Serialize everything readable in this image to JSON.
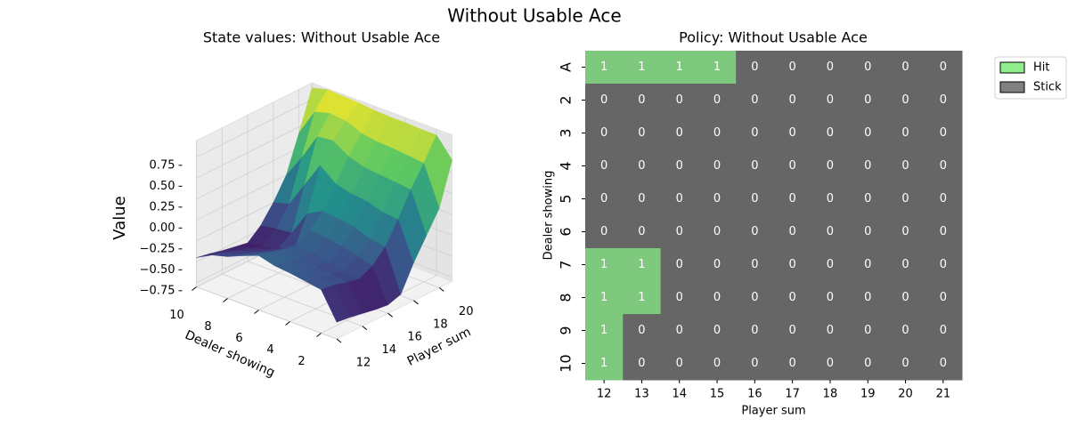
{
  "title": "Without Usable Ace",
  "chart_data": [
    {
      "type": "surface",
      "title": "State values: Without Usable Ace",
      "xlabel": "Player sum",
      "ylabel": "Dealer showing",
      "zlabel": "Value",
      "x": [
        12,
        13,
        14,
        15,
        16,
        17,
        18,
        19,
        20,
        21
      ],
      "y": [
        1,
        2,
        3,
        4,
        5,
        6,
        7,
        8,
        9,
        10
      ],
      "z": [
        [
          -0.6,
          -0.62,
          -0.65,
          -0.68,
          -0.7,
          -0.65,
          -0.35,
          -0.1,
          0.15,
          0.65
        ],
        [
          -0.28,
          -0.3,
          -0.35,
          -0.38,
          -0.3,
          -0.15,
          0.1,
          0.38,
          0.62,
          0.88
        ],
        [
          -0.25,
          -0.28,
          -0.32,
          -0.35,
          -0.25,
          -0.12,
          0.12,
          0.4,
          0.64,
          0.88
        ],
        [
          -0.22,
          -0.25,
          -0.3,
          -0.32,
          -0.2,
          -0.05,
          0.18,
          0.42,
          0.66,
          0.89
        ],
        [
          -0.2,
          -0.22,
          -0.26,
          -0.28,
          -0.17,
          -0.02,
          0.2,
          0.44,
          0.67,
          0.89
        ],
        [
          -0.15,
          -0.18,
          -0.22,
          -0.25,
          -0.15,
          0.0,
          0.25,
          0.5,
          0.7,
          0.9
        ],
        [
          -0.22,
          -0.28,
          -0.33,
          -0.38,
          -0.45,
          -0.1,
          0.4,
          0.62,
          0.78,
          0.92
        ],
        [
          -0.3,
          -0.35,
          -0.4,
          -0.45,
          -0.5,
          -0.4,
          0.1,
          0.6,
          0.8,
          0.93
        ],
        [
          -0.35,
          -0.4,
          -0.45,
          -0.5,
          -0.55,
          -0.42,
          -0.2,
          0.28,
          0.75,
          0.94
        ],
        [
          -0.45,
          -0.48,
          -0.52,
          -0.55,
          -0.58,
          -0.45,
          -0.25,
          0.0,
          0.43,
          0.89
        ]
      ],
      "xlim": [
        12,
        21
      ],
      "ylim": [
        1,
        10
      ],
      "zlim": [
        -0.8,
        0.95
      ],
      "xticks": [
        12,
        14,
        16,
        18,
        20
      ],
      "yticks": [
        2,
        4,
        6,
        8,
        10
      ],
      "zticks": [
        {
          "value": -0.75,
          "label": "−0.75"
        },
        {
          "value": -0.5,
          "label": "−0.50"
        },
        {
          "value": -0.25,
          "label": "−0.25"
        },
        {
          "value": 0,
          "label": "0.00"
        },
        0.25,
        {
          "value": 0.5,
          "label": "0.50"
        },
        0.75
      ],
      "colormap": "viridis",
      "grid": true
    },
    {
      "type": "heatmap",
      "title": "Policy: Without Usable Ace",
      "xlabel": "Player sum",
      "ylabel": "Dealer showing",
      "x": [
        12,
        13,
        14,
        15,
        16,
        17,
        18,
        19,
        20,
        21
      ],
      "y": [
        "A",
        "2",
        "3",
        "4",
        "5",
        "6",
        "7",
        "8",
        "9",
        "10"
      ],
      "values": [
        [
          1,
          1,
          1,
          1,
          0,
          0,
          0,
          0,
          0,
          0
        ],
        [
          0,
          0,
          0,
          0,
          0,
          0,
          0,
          0,
          0,
          0
        ],
        [
          0,
          0,
          0,
          0,
          0,
          0,
          0,
          0,
          0,
          0
        ],
        [
          0,
          0,
          0,
          0,
          0,
          0,
          0,
          0,
          0,
          0
        ],
        [
          0,
          0,
          0,
          0,
          0,
          0,
          0,
          0,
          0,
          0
        ],
        [
          0,
          0,
          0,
          0,
          0,
          0,
          0,
          0,
          0,
          0
        ],
        [
          1,
          1,
          0,
          0,
          0,
          0,
          0,
          0,
          0,
          0
        ],
        [
          1,
          1,
          0,
          0,
          0,
          0,
          0,
          0,
          0,
          0
        ],
        [
          1,
          0,
          0,
          0,
          0,
          0,
          0,
          0,
          0,
          0
        ],
        [
          1,
          0,
          0,
          0,
          0,
          0,
          0,
          0,
          0,
          0
        ]
      ],
      "cell_colors": [
        "#666666",
        "#7fc97f"
      ],
      "legend": [
        {
          "name": "Hit",
          "color": "#90ee90"
        },
        {
          "name": "Stick",
          "color": "#808080"
        }
      ],
      "legend_position": "outside upper right"
    }
  ]
}
